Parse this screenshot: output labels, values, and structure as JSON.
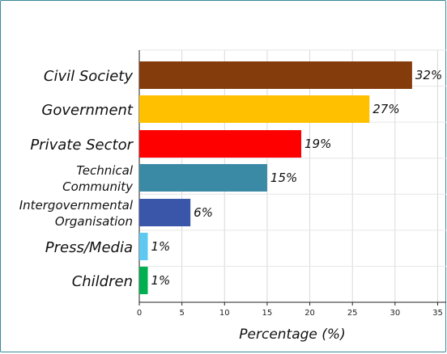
{
  "chart_data": {
    "type": "bar",
    "orientation": "horizontal",
    "title": "",
    "xlabel": "Percentage (%)",
    "ylabel": "",
    "xlim": [
      0,
      36
    ],
    "xticks": [
      0,
      5,
      10,
      15,
      20,
      25,
      30,
      35
    ],
    "grid": true,
    "categories": [
      {
        "lines": [
          "Civil Society"
        ],
        "value": 32,
        "label": "32%",
        "color": "#843c0c"
      },
      {
        "lines": [
          "Government"
        ],
        "value": 27,
        "label": "27%",
        "color": "#ffc000"
      },
      {
        "lines": [
          "Private Sector"
        ],
        "value": 19,
        "label": "19%",
        "color": "#ff0000"
      },
      {
        "lines": [
          "Technical",
          "Community"
        ],
        "value": 15,
        "label": "15%",
        "color": "#3a8aa5"
      },
      {
        "lines": [
          "Intergovernmental",
          "Organisation"
        ],
        "value": 6,
        "label": "6%",
        "color": "#3a56a8"
      },
      {
        "lines": [
          "Press/Media"
        ],
        "value": 1,
        "label": "1%",
        "color": "#5ec8f0"
      },
      {
        "lines": [
          "Children"
        ],
        "value": 1,
        "label": "1%",
        "color": "#00b050"
      }
    ]
  }
}
